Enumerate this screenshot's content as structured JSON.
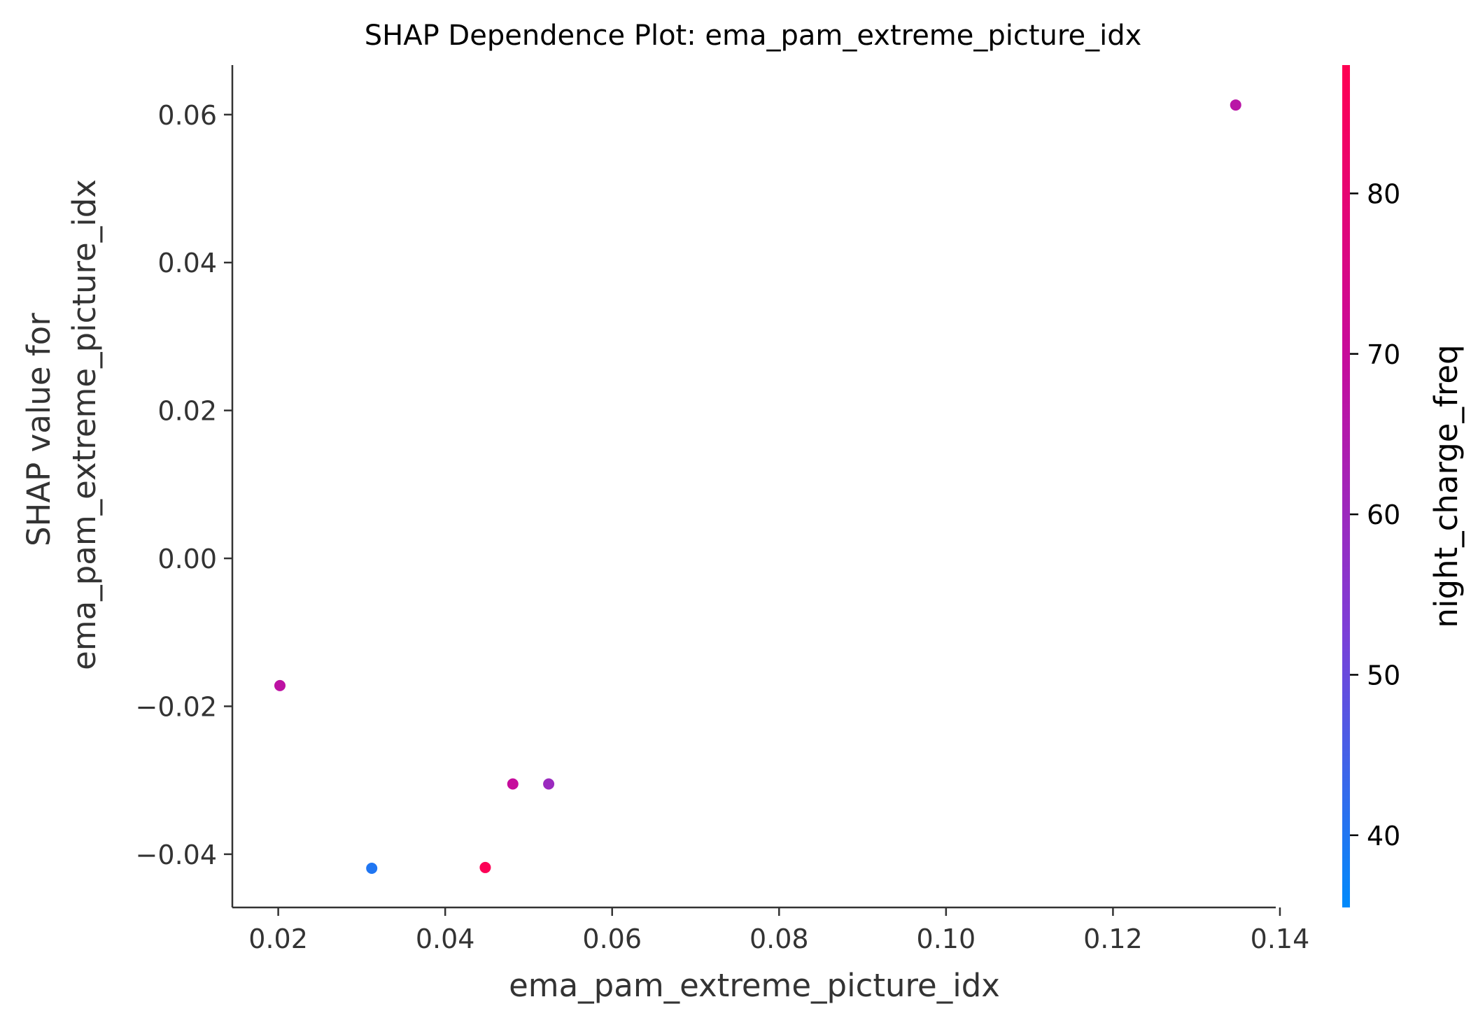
{
  "chart_data": {
    "type": "scatter",
    "title": "SHAP Dependence Plot: ema_pam_extreme_picture_idx",
    "xlabel": "ema_pam_extreme_picture_idx",
    "ylabel_lines": [
      "SHAP value for",
      "ema_pam_extreme_picture_idx"
    ],
    "xlim": [
      0.0145,
      0.1395
    ],
    "ylim": [
      -0.0472,
      0.0667
    ],
    "xticks": [
      0.02,
      0.04,
      0.06,
      0.08,
      0.1,
      0.12,
      0.14
    ],
    "xtick_labels": [
      "0.02",
      "0.04",
      "0.06",
      "0.08",
      "0.10",
      "0.12",
      "0.14"
    ],
    "yticks": [
      -0.04,
      -0.02,
      0.0,
      0.02,
      0.04,
      0.06
    ],
    "ytick_labels": [
      "−0.04",
      "−0.02",
      "0.00",
      "0.02",
      "0.04",
      "0.06"
    ],
    "grid": false,
    "colorbar": {
      "label": "night_charge_freq",
      "range": [
        35.5,
        88
      ],
      "ticks": [
        40,
        50,
        60,
        70,
        80
      ],
      "tick_labels": [
        "40",
        "50",
        "60",
        "70",
        "80"
      ],
      "colormap": [
        "#008afb",
        "#7d3ed7",
        "#c80b9a",
        "#ff0052"
      ]
    },
    "points": [
      {
        "x": 0.0202,
        "y": -0.0172,
        "color_value": 68
      },
      {
        "x": 0.0312,
        "y": -0.0419,
        "color_value": 40
      },
      {
        "x": 0.0448,
        "y": -0.0418,
        "color_value": 87
      },
      {
        "x": 0.0481,
        "y": -0.0305,
        "color_value": 70
      },
      {
        "x": 0.0524,
        "y": -0.0305,
        "color_value": 60
      },
      {
        "x": 0.1347,
        "y": 0.0613,
        "color_value": 67
      }
    ]
  }
}
